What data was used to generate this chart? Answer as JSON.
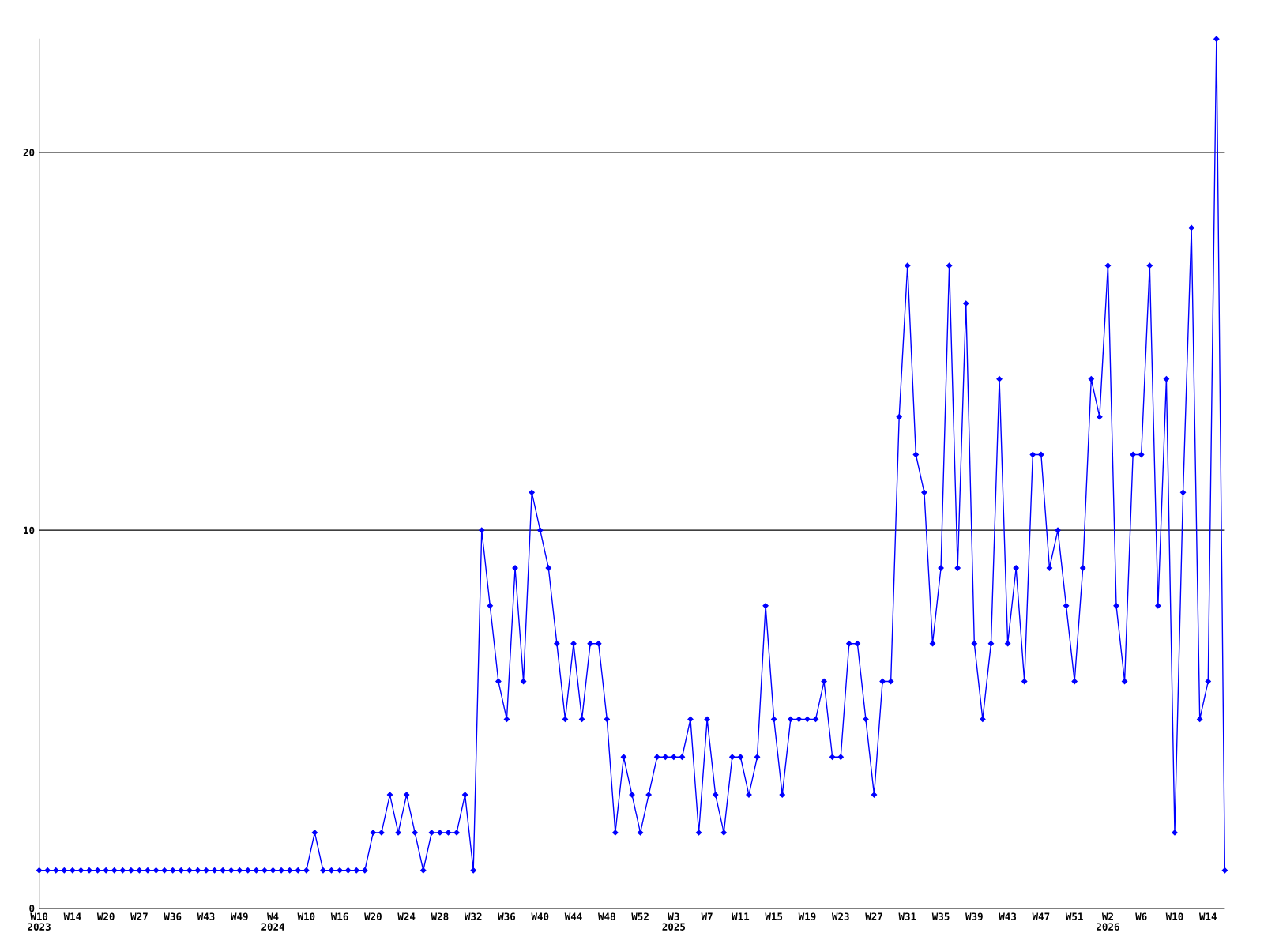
{
  "chart_data": {
    "type": "line",
    "categories": [
      "W10\n2023",
      null,
      null,
      null,
      "W14",
      null,
      null,
      null,
      "W20",
      null,
      null,
      null,
      "W27",
      null,
      null,
      null,
      "W36",
      null,
      null,
      null,
      "W43",
      null,
      null,
      null,
      "W49",
      null,
      null,
      null,
      "W4\n2024",
      null,
      null,
      null,
      "W10",
      null,
      null,
      null,
      "W16",
      null,
      null,
      null,
      "W20",
      null,
      null,
      null,
      "W24",
      null,
      null,
      null,
      "W28",
      null,
      null,
      null,
      "W32",
      null,
      null,
      null,
      "W36",
      null,
      null,
      null,
      "W40",
      null,
      null,
      null,
      "W44",
      null,
      null,
      null,
      "W48",
      null,
      null,
      null,
      "W52",
      null,
      null,
      null,
      "W3\n2025",
      null,
      null,
      null,
      "W7",
      null,
      null,
      null,
      "W11",
      null,
      null,
      null,
      "W15",
      null,
      null,
      null,
      "W19",
      null,
      null,
      null,
      "W23",
      null,
      null,
      null,
      "W27",
      null,
      null,
      null,
      "W31",
      null,
      null,
      null,
      "W35",
      null,
      null,
      null,
      "W39",
      null,
      null,
      null,
      "W43",
      null,
      null,
      null,
      "W47",
      null,
      null,
      null,
      "W51",
      null,
      null,
      null,
      "W2\n2026",
      null,
      null,
      null,
      "W6",
      null,
      null,
      null,
      "W10",
      null,
      null,
      null,
      "W14",
      null,
      null
    ],
    "series": [
      {
        "color": "#0000ff",
        "values": [
          1,
          1,
          1,
          1,
          1,
          1,
          1,
          1,
          1,
          1,
          1,
          1,
          1,
          1,
          1,
          1,
          1,
          1,
          1,
          1,
          1,
          1,
          1,
          1,
          1,
          1,
          1,
          1,
          1,
          1,
          1,
          1,
          1,
          2,
          1,
          1,
          1,
          1,
          1,
          1,
          2,
          2,
          3,
          2,
          3,
          2,
          1,
          2,
          2,
          2,
          2,
          3,
          1,
          10,
          8,
          6,
          5,
          9,
          6,
          11,
          10,
          9,
          7,
          5,
          7,
          5,
          7,
          7,
          5,
          2,
          4,
          3,
          2,
          3,
          4,
          4,
          4,
          4,
          5,
          2,
          5,
          3,
          2,
          4,
          4,
          3,
          4,
          8,
          5,
          3,
          5,
          5,
          5,
          5,
          6,
          4,
          4,
          7,
          7,
          5,
          3,
          6,
          6,
          13,
          17,
          12,
          11,
          7,
          9,
          17,
          9,
          16,
          7,
          5,
          7,
          14,
          7,
          9,
          6,
          12,
          12,
          9,
          10,
          8,
          6,
          9,
          14,
          13,
          17,
          8,
          6,
          12,
          12,
          17,
          8,
          14,
          2,
          11,
          18,
          5,
          6,
          23,
          1
        ]
      }
    ],
    "ylim": [
      0,
      23
    ],
    "yticks": [
      0,
      10,
      20
    ],
    "grid": "y",
    "marker": "diamond",
    "line_style": "solid",
    "legend": false
  }
}
